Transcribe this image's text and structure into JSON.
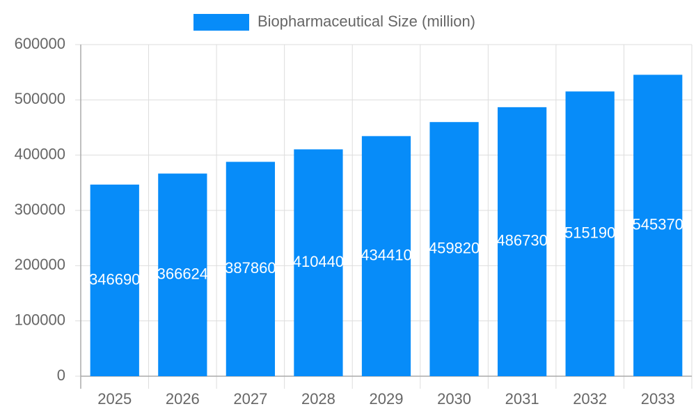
{
  "chart_data": {
    "type": "bar",
    "categories": [
      "2025",
      "2026",
      "2027",
      "2028",
      "2029",
      "2030",
      "2031",
      "2032",
      "2033"
    ],
    "series": [
      {
        "name": "Biopharmaceutical Size (million)",
        "color": "#078cf9",
        "values": [
          346690,
          366624,
          387860,
          410440,
          434410,
          459820,
          486730,
          515190,
          545370
        ]
      }
    ],
    "ylim": [
      0,
      600000
    ],
    "yticks": [
      0,
      100000,
      200000,
      300000,
      400000,
      500000,
      600000
    ],
    "grid": true,
    "legend": "top",
    "data_labels": true
  }
}
